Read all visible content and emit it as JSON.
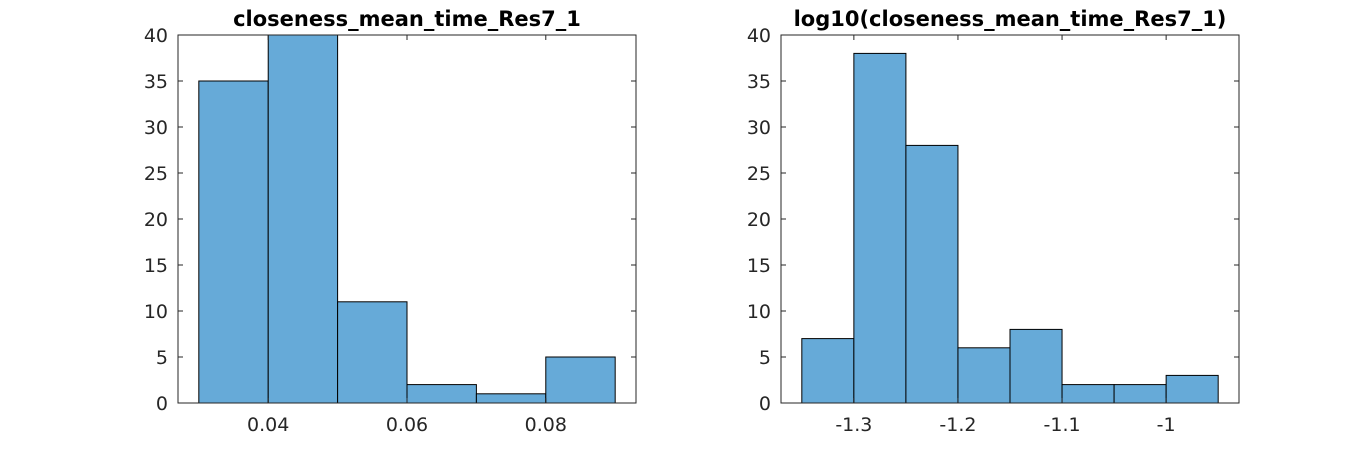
{
  "chart_data": [
    {
      "type": "bar",
      "title": "closeness_mean_time_Res7_1",
      "xlabel": "",
      "ylabel": "",
      "bar_color": "#66aad8",
      "bins": [
        {
          "x0": 0.03,
          "x1": 0.04,
          "count": 35
        },
        {
          "x0": 0.04,
          "x1": 0.05,
          "count": 40
        },
        {
          "x0": 0.05,
          "x1": 0.06,
          "count": 11
        },
        {
          "x0": 0.06,
          "x1": 0.07,
          "count": 2
        },
        {
          "x0": 0.07,
          "x1": 0.08,
          "count": 1
        },
        {
          "x0": 0.08,
          "x1": 0.09,
          "count": 5
        }
      ],
      "xlim": [
        0.027,
        0.093
      ],
      "ylim": [
        0,
        40
      ],
      "xticks": [
        0.04,
        0.06,
        0.08
      ],
      "xtick_labels": [
        "0.04",
        "0.06",
        "0.08"
      ],
      "yticks": [
        0,
        5,
        10,
        15,
        20,
        25,
        30,
        35,
        40
      ],
      "ytick_labels": [
        "0",
        "5",
        "10",
        "15",
        "20",
        "25",
        "30",
        "35",
        "40"
      ],
      "grid": false,
      "legend": "none"
    },
    {
      "type": "bar",
      "title": "log10(closeness_mean_time_Res7_1)",
      "xlabel": "",
      "ylabel": "",
      "bar_color": "#66aad8",
      "bins": [
        {
          "x0": -1.35,
          "x1": -1.3,
          "count": 7
        },
        {
          "x0": -1.3,
          "x1": -1.25,
          "count": 38
        },
        {
          "x0": -1.25,
          "x1": -1.2,
          "count": 28
        },
        {
          "x0": -1.2,
          "x1": -1.15,
          "count": 6
        },
        {
          "x0": -1.15,
          "x1": -1.1,
          "count": 8
        },
        {
          "x0": -1.1,
          "x1": -1.05,
          "count": 2
        },
        {
          "x0": -1.05,
          "x1": -1.0,
          "count": 2
        },
        {
          "x0": -1.0,
          "x1": -0.95,
          "count": 3
        }
      ],
      "xlim": [
        -1.37,
        -0.93
      ],
      "ylim": [
        0,
        40
      ],
      "xticks": [
        -1.3,
        -1.2,
        -1.1,
        -1.0
      ],
      "xtick_labels": [
        "-1.3",
        "-1.2",
        "-1.1",
        "-1"
      ],
      "yticks": [
        0,
        5,
        10,
        15,
        20,
        25,
        30,
        35,
        40
      ],
      "ytick_labels": [
        "0",
        "5",
        "10",
        "15",
        "20",
        "25",
        "30",
        "35",
        "40"
      ],
      "grid": false,
      "legend": "none"
    }
  ]
}
